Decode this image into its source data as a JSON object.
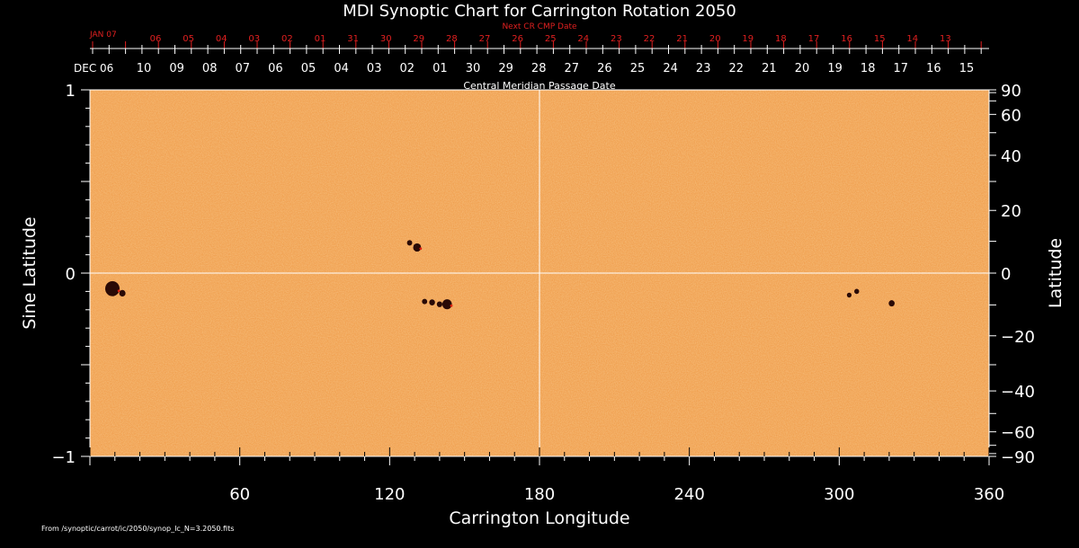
{
  "chart_data": {
    "type": "heatmap",
    "title": "MDI Synoptic Chart for Carrington Rotation 2050",
    "xlabel": "Carrington Longitude",
    "ylabel_left": "Sine Latitude",
    "ylabel_right": "Latitude",
    "xlim": [
      0,
      360
    ],
    "ylim": [
      -1,
      1
    ],
    "x_ticks": [
      "60",
      "120",
      "180",
      "240",
      "300",
      "360"
    ],
    "x_tick_values": [
      60,
      120,
      180,
      240,
      300,
      360
    ],
    "y_left_ticks": [
      "1",
      "0",
      "−1"
    ],
    "y_left_tick_values": [
      1,
      0,
      -1
    ],
    "y_right_ticks": [
      "90",
      "60",
      "40",
      "20",
      "0",
      "−20",
      "−40",
      "−60",
      "−90"
    ],
    "y_right_tick_values": [
      90,
      60,
      40,
      20,
      0,
      -20,
      -40,
      -60,
      -90
    ],
    "cmp_axis_label": "Central Meridian Passage Date",
    "cmp_start_label": "DEC 06",
    "cmp_dates": [
      "10",
      "09",
      "08",
      "07",
      "06",
      "05",
      "04",
      "03",
      "02",
      "01",
      "30",
      "29",
      "28",
      "27",
      "26",
      "25",
      "24",
      "23",
      "22",
      "21",
      "20",
      "19",
      "18",
      "17",
      "16",
      "15"
    ],
    "next_cr_label": "Next CR CMP Date",
    "next_cr_start_label": "JAN 07",
    "next_cr_dates": [
      "06",
      "05",
      "04",
      "03",
      "02",
      "01",
      "31",
      "30",
      "29",
      "28",
      "27",
      "26",
      "25",
      "24",
      "23",
      "22",
      "21",
      "20",
      "19",
      "18",
      "17",
      "16",
      "15",
      "14",
      "13"
    ],
    "grid_lines": {
      "longitude": 180,
      "sine_latitude": 0
    },
    "background_color": "#f0a050",
    "spot_color": "#2a0a06",
    "sunspots": [
      {
        "lon": 9,
        "sinlat": -0.085,
        "size": 1.0
      },
      {
        "lon": 13,
        "sinlat": -0.11,
        "size": 0.25
      },
      {
        "lon": 131,
        "sinlat": 0.14,
        "size": 0.4
      },
      {
        "lon": 128,
        "sinlat": 0.165,
        "size": 0.15
      },
      {
        "lon": 143,
        "sinlat": -0.17,
        "size": 0.55
      },
      {
        "lon": 137,
        "sinlat": -0.16,
        "size": 0.2
      },
      {
        "lon": 134,
        "sinlat": -0.155,
        "size": 0.15
      },
      {
        "lon": 140,
        "sinlat": -0.17,
        "size": 0.18
      },
      {
        "lon": 321,
        "sinlat": -0.165,
        "size": 0.22
      },
      {
        "lon": 307,
        "sinlat": -0.1,
        "size": 0.12
      },
      {
        "lon": 304,
        "sinlat": -0.12,
        "size": 0.1
      }
    ],
    "source_file": "From /synoptic/carrot/ic/2050/synop_Ic_N=3.2050.fits"
  }
}
